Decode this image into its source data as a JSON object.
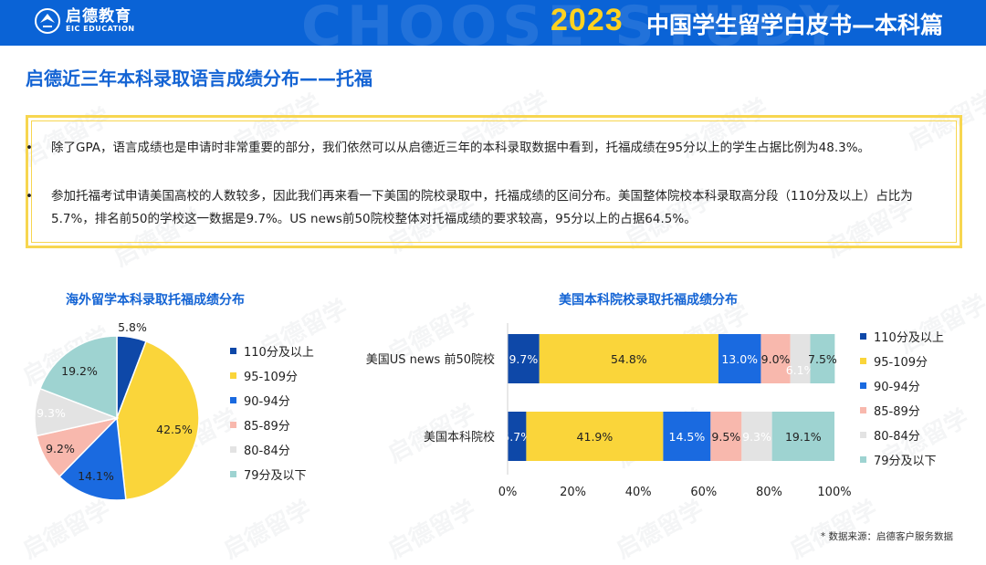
{
  "header": {
    "logo_cn": "启德教育",
    "logo_en": "EIC EDUCATION",
    "year": "2023",
    "book_title": "中国学生留学白皮书—本科篇"
  },
  "section_title": "启德近三年本科录取语言成绩分布——托福",
  "notes": [
    "除了GPA，语言成绩也是申请时非常重要的部分，我们依然可以从启德近三年的本科录取数据中看到，托福成绩在95分以上的学生占据比例为48.3%。",
    "参加托福考试申请美国高校的人数较多，因此我们再来看一下美国的院校录取中，托福成绩的区间分布。美国整体院校本科录取高分段（110分及以上）占比为5.7%，排名前50的学校这一数据是9.7%。US news前50院校整体对托福成绩的要求较高，95分以上的占据64.5%。"
  ],
  "bullet": "•",
  "watermark": "启德留学",
  "source": "* 数据来源：启德客户服务数据",
  "colors": {
    "brand_blue": "#0a63d6",
    "accent_yellow": "#ffd21f",
    "series": [
      "#0e48a8",
      "#fad53a",
      "#1a6ae0",
      "#f8b8ad",
      "#e3e3e3",
      "#9ed3d1"
    ]
  },
  "chart_data": [
    {
      "type": "pie",
      "title": "海外留学本科录取托福成绩分布",
      "labels": [
        "110分及以上",
        "95-109分",
        "90-94分",
        "85-89分",
        "80-84分",
        "79分及以下"
      ],
      "values": [
        5.8,
        42.5,
        14.1,
        9.2,
        9.3,
        19.2
      ],
      "value_labels": [
        "5.8%",
        "42.5%",
        "14.1%",
        "9.2%",
        "9.3%",
        "19.2%"
      ],
      "legend_position": "right"
    },
    {
      "type": "bar",
      "orientation": "horizontal",
      "stacked": true,
      "title": "美国本科院校录取托福成绩分布",
      "categories": [
        "美国US news 前50院校",
        "美国本科院校"
      ],
      "series": [
        {
          "name": "110分及以上",
          "values": [
            9.7,
            5.7
          ],
          "labels": [
            "9.7%",
            "5.7%"
          ]
        },
        {
          "name": "95-109分",
          "values": [
            54.8,
            41.9
          ],
          "labels": [
            "54.8%",
            "41.9%"
          ]
        },
        {
          "name": "90-94分",
          "values": [
            13.0,
            14.5
          ],
          "labels": [
            "13.0%",
            "14.5%"
          ]
        },
        {
          "name": "85-89分",
          "values": [
            9.0,
            9.5
          ],
          "labels": [
            "9.0%",
            "9.5%"
          ]
        },
        {
          "name": "80-84分",
          "values": [
            6.1,
            9.3
          ],
          "labels": [
            "6.1%",
            "9.3%"
          ]
        },
        {
          "name": "79分及以下",
          "values": [
            7.5,
            19.1
          ],
          "labels": [
            "7.5%",
            "19.1%"
          ]
        }
      ],
      "xlim": [
        0,
        100
      ],
      "x_ticks": [
        "0%",
        "20%",
        "40%",
        "60%",
        "80%",
        "100%"
      ],
      "legend_position": "right"
    }
  ]
}
